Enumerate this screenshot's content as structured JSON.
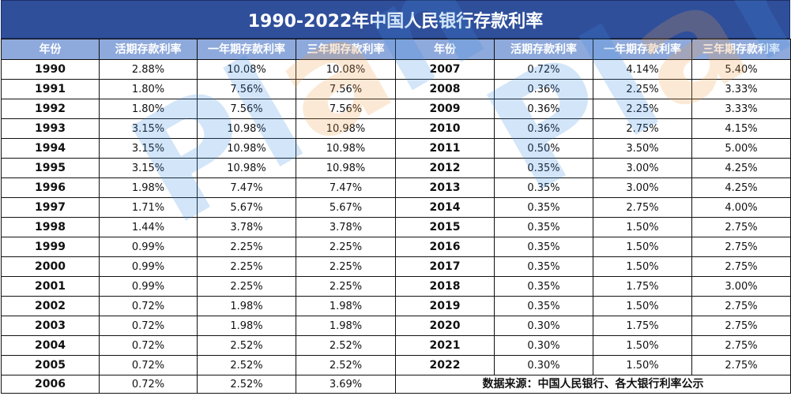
{
  "title": "1990-2022年中国人民银行存款利率",
  "headers": [
    "年份",
    "活期存款利率",
    "一年期存款利率",
    "三年期存款利率",
    "年份",
    "活期存款利率",
    "一年期存款利率",
    "三年期存款利率"
  ],
  "left_rows": [
    [
      "1990",
      "2.88%",
      "10.08%",
      "10.08%"
    ],
    [
      "1991",
      "1.80%",
      "7.56%",
      "7.56%"
    ],
    [
      "1992",
      "1.80%",
      "7.56%",
      "7.56%"
    ],
    [
      "1993",
      "3.15%",
      "10.98%",
      "10.98%"
    ],
    [
      "1994",
      "3.15%",
      "10.98%",
      "10.98%"
    ],
    [
      "1995",
      "3.15%",
      "10.98%",
      "10.98%"
    ],
    [
      "1996",
      "1.98%",
      "7.47%",
      "7.47%"
    ],
    [
      "1997",
      "1.71%",
      "5.67%",
      "5.67%"
    ],
    [
      "1998",
      "1.44%",
      "3.78%",
      "3.78%"
    ],
    [
      "1999",
      "0.99%",
      "2.25%",
      "2.25%"
    ],
    [
      "2000",
      "0.99%",
      "2.25%",
      "2.25%"
    ],
    [
      "2001",
      "0.99%",
      "2.25%",
      "2.25%"
    ],
    [
      "2002",
      "0.72%",
      "1.98%",
      "1.98%"
    ],
    [
      "2003",
      "0.72%",
      "1.98%",
      "1.98%"
    ],
    [
      "2004",
      "0.72%",
      "2.52%",
      "2.52%"
    ],
    [
      "2005",
      "0.72%",
      "2.52%",
      "2.52%"
    ],
    [
      "2006",
      "0.72%",
      "2.52%",
      "3.69%"
    ]
  ],
  "right_rows": [
    [
      "2007",
      "0.72%",
      "4.14%",
      "5.40%"
    ],
    [
      "2008",
      "0.36%",
      "2.25%",
      "3.33%"
    ],
    [
      "2009",
      "0.36%",
      "2.25%",
      "3.33%"
    ],
    [
      "2010",
      "0.36%",
      "2.75%",
      "4.15%"
    ],
    [
      "2011",
      "0.50%",
      "3.50%",
      "5.00%"
    ],
    [
      "2012",
      "0.35%",
      "3.00%",
      "4.25%"
    ],
    [
      "2013",
      "0.35%",
      "3.00%",
      "4.25%"
    ],
    [
      "2014",
      "0.35%",
      "2.75%",
      "4.00%"
    ],
    [
      "2015",
      "0.35%",
      "1.50%",
      "2.75%"
    ],
    [
      "2016",
      "0.35%",
      "1.50%",
      "2.75%"
    ],
    [
      "2017",
      "0.35%",
      "1.50%",
      "2.75%"
    ],
    [
      "2018",
      "0.35%",
      "1.75%",
      "3.00%"
    ],
    [
      "2019",
      "0.35%",
      "1.50%",
      "2.75%"
    ],
    [
      "2020",
      "0.30%",
      "1.75%",
      "2.75%"
    ],
    [
      "2021",
      "0.30%",
      "1.50%",
      "2.75%"
    ],
    [
      "2022",
      "0.30%",
      "1.50%",
      "2.75%"
    ]
  ],
  "source_note": "数据来源：中国人民银行、各大银行利率公示",
  "watermark": [
    "Plan",
    "Plan"
  ],
  "colors": {
    "title_bg": "#2f4f9b",
    "header_bg": "#8ea9db",
    "watermark_blue": "#3d8be0",
    "watermark_orange": "#f0a04b"
  }
}
